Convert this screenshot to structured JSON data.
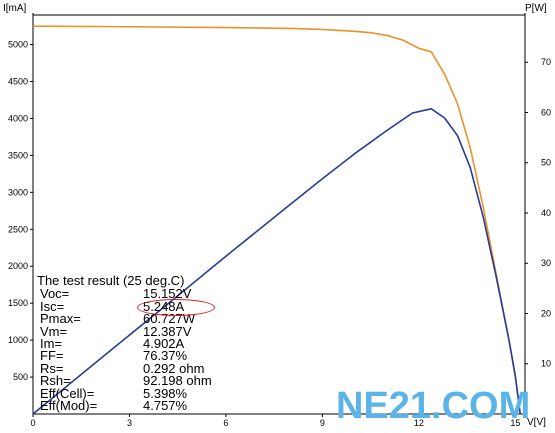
{
  "chart_data": {
    "type": "line",
    "xlabel": "V[V]",
    "ylabel": "I[mA]",
    "y2label": "P[W]",
    "xlim": [
      0,
      15.3
    ],
    "ylim": [
      0,
      5400
    ],
    "y2lim": [
      0,
      79.4
    ],
    "x_ticks": [
      0,
      3,
      6,
      9,
      12,
      15
    ],
    "y_ticks": [
      500,
      1000,
      1500,
      2000,
      2500,
      3000,
      3500,
      4000,
      4500,
      5000
    ],
    "y2_ticks": [
      10,
      20,
      30,
      40,
      50,
      60,
      70
    ],
    "series": [
      {
        "axis": "left",
        "color": "#e8922a",
        "points": [
          [
            0,
            5248
          ],
          [
            2,
            5244
          ],
          [
            4,
            5238
          ],
          [
            6,
            5230
          ],
          [
            8,
            5218
          ],
          [
            9,
            5205
          ],
          [
            10,
            5180
          ],
          [
            10.5,
            5160
          ],
          [
            11,
            5125
          ],
          [
            11.5,
            5060
          ],
          [
            12,
            4950
          ],
          [
            12.387,
            4902
          ],
          [
            12.8,
            4600
          ],
          [
            13.2,
            4200
          ],
          [
            13.6,
            3600
          ],
          [
            14.0,
            2800
          ],
          [
            14.4,
            1900
          ],
          [
            14.8,
            1000
          ],
          [
            15.0,
            500
          ],
          [
            15.152,
            0
          ]
        ]
      },
      {
        "axis": "right",
        "color": "#283c96",
        "points": [
          [
            0,
            0
          ],
          [
            2,
            10.5
          ],
          [
            4,
            20.9
          ],
          [
            6,
            31.4
          ],
          [
            8,
            41.7
          ],
          [
            9,
            46.8
          ],
          [
            10,
            51.8
          ],
          [
            11,
            56.4
          ],
          [
            11.8,
            59.9
          ],
          [
            12.387,
            60.727
          ],
          [
            12.8,
            58.9
          ],
          [
            13.2,
            55.4
          ],
          [
            13.6,
            49.0
          ],
          [
            14.0,
            39.2
          ],
          [
            14.4,
            27.4
          ],
          [
            14.8,
            14.8
          ],
          [
            15.0,
            7.5
          ],
          [
            15.152,
            0
          ]
        ]
      }
    ]
  },
  "results": {
    "title": "The test result (25 deg.C)",
    "rows": [
      {
        "label": "Voc=",
        "value": "15.152V"
      },
      {
        "label": "Isc=",
        "value": "5.248A"
      },
      {
        "label": "Pmax=",
        "value": "60.727W"
      },
      {
        "label": "Vm=",
        "value": "12.387V"
      },
      {
        "label": "Im=",
        "value": "4.902A"
      },
      {
        "label": "FF=",
        "value": "76.37%"
      },
      {
        "label": "Rs=",
        "value": "0.292 ohm"
      },
      {
        "label": "Rsh=",
        "value": "92.198 ohm"
      },
      {
        "label": "Eff(Cell)=",
        "value": "5.398%"
      },
      {
        "label": "Eff(Mod)=",
        "value": "4.757%"
      }
    ]
  },
  "watermark": "NE21.COM"
}
